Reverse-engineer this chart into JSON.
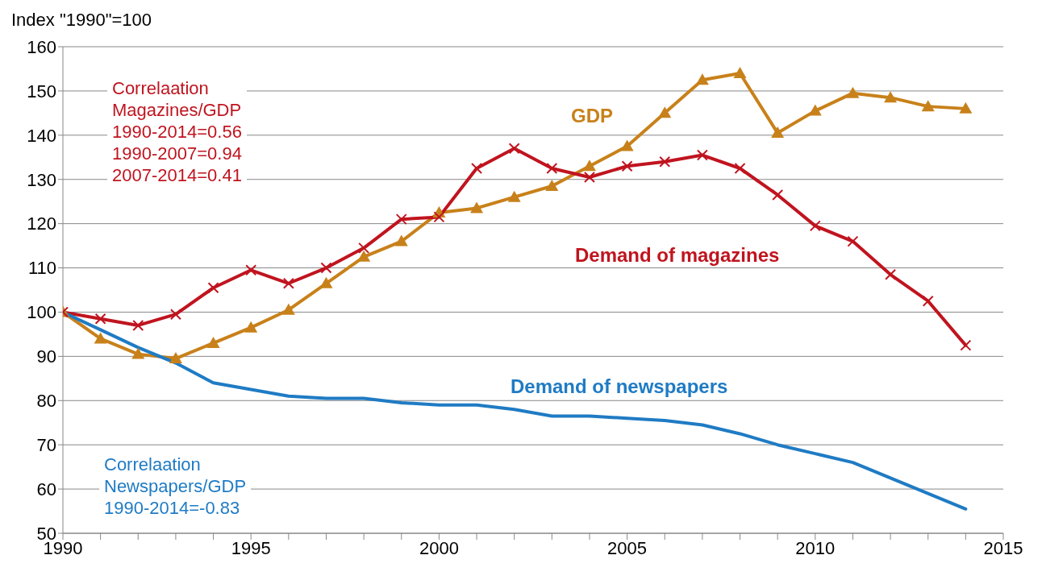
{
  "chart_data": {
    "type": "line",
    "ylabel": "Index \"1990\"=100",
    "x": [
      1990,
      1991,
      1992,
      1993,
      1994,
      1995,
      1996,
      1997,
      1998,
      1999,
      2000,
      2001,
      2002,
      2003,
      2004,
      2005,
      2006,
      2007,
      2008,
      2009,
      2010,
      2011,
      2012,
      2013,
      2014
    ],
    "series": [
      {
        "name": "GDP",
        "color": "#c8811a",
        "marker": "triangle",
        "values": [
          100,
          94,
          90.5,
          89.5,
          93,
          96.5,
          100.5,
          106.5,
          112.5,
          116,
          122.5,
          123.5,
          126,
          128.5,
          133,
          137.5,
          145,
          152.5,
          154,
          140.5,
          145.5,
          149.5,
          148.5,
          146.5,
          146
        ]
      },
      {
        "name": "Demand of magazines",
        "color": "#c0141f",
        "marker": "cross",
        "values": [
          100,
          98.5,
          97,
          99.5,
          105.5,
          109.5,
          106.5,
          110,
          114.5,
          121,
          121.5,
          132.5,
          137,
          132.5,
          130.5,
          133,
          134,
          135.5,
          132.5,
          126.5,
          119.5,
          116,
          108.5,
          102.5,
          92.5
        ]
      },
      {
        "name": "Demand of newspapers",
        "color": "#1f7bc4",
        "marker": "none",
        "values": [
          100,
          96,
          92,
          88.5,
          84,
          82.5,
          81,
          80.5,
          80.5,
          79.5,
          79,
          79,
          78,
          76.5,
          76.5,
          76,
          75.5,
          74.5,
          72.5,
          70,
          68,
          66,
          62.5,
          59,
          55.5
        ]
      }
    ],
    "xlim": [
      1990,
      2015
    ],
    "xticks": [
      1990,
      {
        "value": 1991,
        "label": null
      },
      {
        "value": 1992,
        "label": null
      },
      {
        "value": 1993,
        "label": null
      },
      {
        "value": 1994,
        "label": null
      },
      1995,
      {
        "value": 1996,
        "label": null
      },
      {
        "value": 1997,
        "label": null
      },
      {
        "value": 1998,
        "label": null
      },
      {
        "value": 1999,
        "label": null
      },
      2000,
      {
        "value": 2001,
        "label": null
      },
      {
        "value": 2002,
        "label": null
      },
      {
        "value": 2003,
        "label": null
      },
      {
        "value": 2004,
        "label": null
      },
      2005,
      {
        "value": 2006,
        "label": null
      },
      {
        "value": 2007,
        "label": null
      },
      {
        "value": 2008,
        "label": null
      },
      {
        "value": 2009,
        "label": null
      },
      2010,
      {
        "value": 2011,
        "label": null
      },
      {
        "value": 2012,
        "label": null
      },
      {
        "value": 2013,
        "label": null
      },
      {
        "value": 2014,
        "label": null
      },
      2015
    ],
    "ylim": [
      50,
      160
    ],
    "yticks": [
      50,
      60,
      70,
      80,
      90,
      100,
      110,
      120,
      130,
      140,
      150,
      160
    ],
    "grid": "y",
    "line_style": "solid",
    "annotations": [
      "Correlaation\nMagazines/GDP\n1990-2014=0.56\n1990-2007=0.94\n2007-2014=0.41",
      "Correlaation\nNewspapers/GDP\n1990-2014=-0.83"
    ]
  }
}
